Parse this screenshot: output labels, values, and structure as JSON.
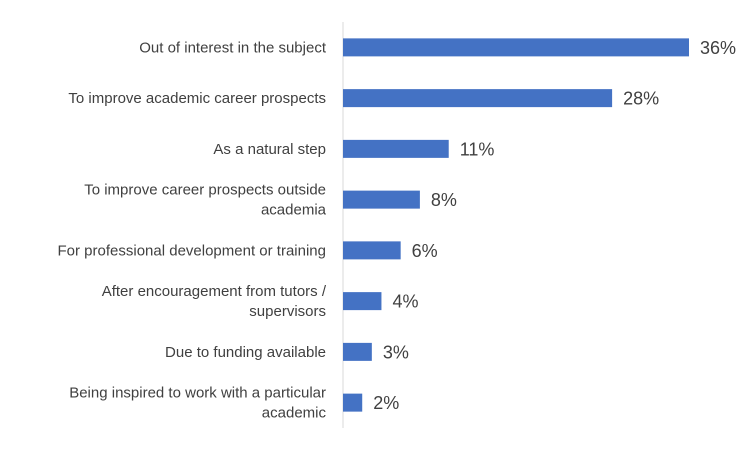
{
  "chart_data": {
    "type": "bar",
    "orientation": "horizontal",
    "categories": [
      [
        "Out of interest in the subject"
      ],
      [
        "To improve academic career prospects"
      ],
      [
        "As a natural step"
      ],
      [
        "To improve career prospects outside",
        "academia"
      ],
      [
        "For professional development or training"
      ],
      [
        "After encouragement from tutors /",
        "supervisors"
      ],
      [
        "Due to funding available"
      ],
      [
        "Being inspired to work with a particular",
        "academic"
      ]
    ],
    "values": [
      36,
      28,
      11,
      8,
      6,
      4,
      3,
      2
    ],
    "value_labels": [
      "36%",
      "28%",
      "11%",
      "8%",
      "6%",
      "4%",
      "3%",
      "2%"
    ],
    "value_unit": "%",
    "title": "",
    "xlabel": "",
    "ylabel": "",
    "xlim": [
      0,
      36
    ],
    "grid": false,
    "legend": "none",
    "bar_color": "#4472C4",
    "axis_color": "#D9D9D9",
    "text_color": "#404040"
  }
}
